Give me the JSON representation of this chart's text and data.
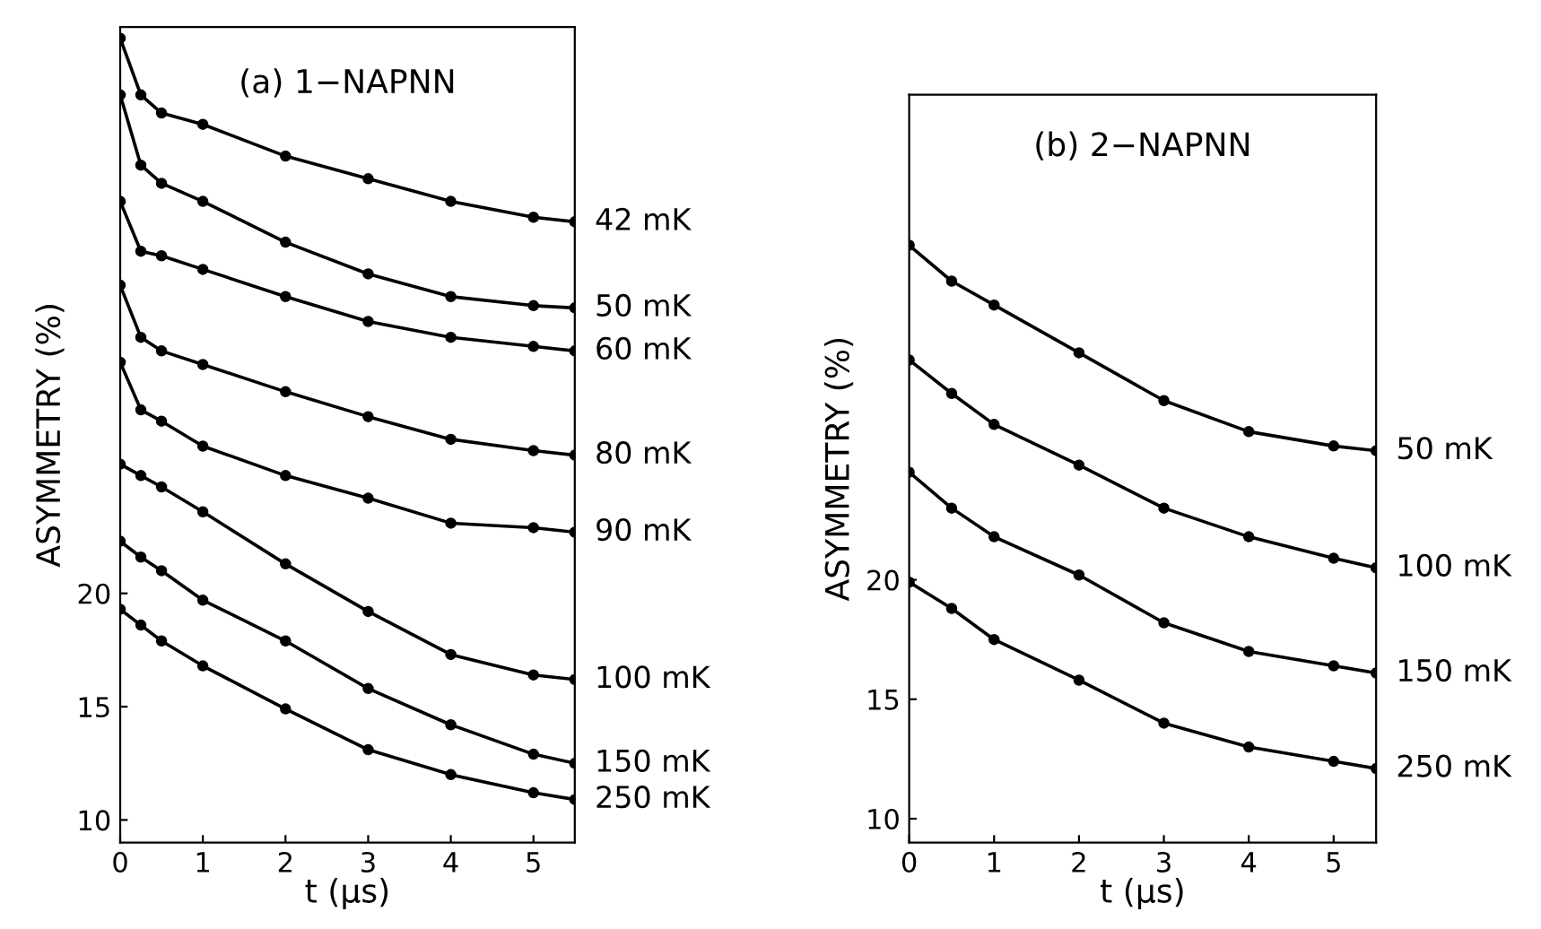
{
  "chart_data": [
    {
      "type": "line",
      "annotations": [
        "(a) 1−NAPNN"
      ],
      "xlabel": "t (μs)",
      "ylabel": "ASYMMETRY (%)",
      "x": [
        0,
        0.25,
        0.5,
        1,
        2,
        3,
        4,
        5,
        5.5
      ],
      "xlim": [
        0,
        5.5
      ],
      "xticks": [
        0,
        1,
        2,
        3,
        4,
        5
      ],
      "ylim": [
        9,
        45
      ],
      "yticks": [
        10,
        15,
        20
      ],
      "marker": "circle",
      "legend": false,
      "series": [
        {
          "name": "42 mK",
          "color": "#000000",
          "values": [
            44.5,
            42.0,
            41.2,
            40.7,
            39.3,
            38.3,
            37.3,
            36.6,
            36.4
          ]
        },
        {
          "name": "50 mK",
          "color": "#000000",
          "values": [
            42.0,
            38.9,
            38.1,
            37.3,
            35.5,
            34.1,
            33.1,
            32.7,
            32.6
          ]
        },
        {
          "name": "60 mK",
          "color": "#000000",
          "values": [
            37.3,
            35.1,
            34.9,
            34.3,
            33.1,
            32.0,
            31.3,
            30.9,
            30.7
          ]
        },
        {
          "name": "80 mK",
          "color": "#000000",
          "values": [
            33.6,
            31.3,
            30.7,
            30.1,
            28.9,
            27.8,
            26.8,
            26.3,
            26.1
          ]
        },
        {
          "name": "90 mK",
          "color": "#000000",
          "values": [
            30.2,
            28.1,
            27.6,
            26.5,
            25.2,
            24.2,
            23.1,
            22.9,
            22.7
          ]
        },
        {
          "name": "100 mK",
          "color": "#000000",
          "values": [
            25.7,
            25.2,
            24.7,
            23.6,
            21.3,
            19.2,
            17.3,
            16.4,
            16.2
          ]
        },
        {
          "name": "150 mK",
          "color": "#000000",
          "values": [
            22.3,
            21.6,
            21.0,
            19.7,
            17.9,
            15.8,
            14.2,
            12.9,
            12.5
          ]
        },
        {
          "name": "250 mK",
          "color": "#000000",
          "values": [
            19.3,
            18.6,
            17.9,
            16.8,
            14.9,
            13.1,
            12.0,
            11.2,
            10.9
          ]
        }
      ]
    },
    {
      "type": "line",
      "annotations": [
        "(b) 2−NAPNN"
      ],
      "xlabel": "t (μs)",
      "ylabel": "ASYMMETRY (%)",
      "x": [
        0,
        0.5,
        1,
        2,
        3,
        4,
        5,
        5.5
      ],
      "xlim": [
        0,
        5.5
      ],
      "xticks": [
        0,
        1,
        2,
        3,
        4,
        5
      ],
      "ylim": [
        9,
        40.3
      ],
      "yticks": [
        10,
        15,
        20
      ],
      "marker": "circle",
      "legend": false,
      "series": [
        {
          "name": "50 mK",
          "color": "#000000",
          "values": [
            34.0,
            32.5,
            31.5,
            29.5,
            27.5,
            26.2,
            25.6,
            25.4
          ]
        },
        {
          "name": "100 mK",
          "color": "#000000",
          "values": [
            29.2,
            27.8,
            26.5,
            24.8,
            23.0,
            21.8,
            20.9,
            20.5
          ]
        },
        {
          "name": "150 mK",
          "color": "#000000",
          "values": [
            24.5,
            23.0,
            21.8,
            20.2,
            18.2,
            17.0,
            16.4,
            16.1
          ]
        },
        {
          "name": "250 mK",
          "color": "#000000",
          "values": [
            19.9,
            18.8,
            17.5,
            15.8,
            14.0,
            13.0,
            12.4,
            12.1
          ]
        }
      ]
    }
  ]
}
